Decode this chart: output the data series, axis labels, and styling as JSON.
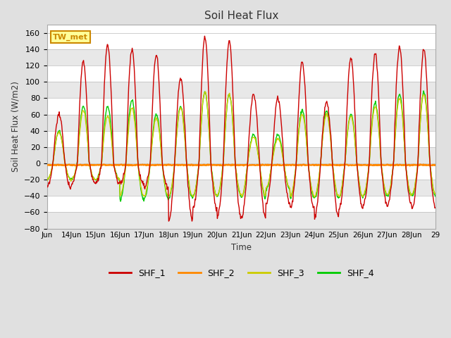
{
  "title": "Soil Heat Flux",
  "ylabel": "Soil Heat Flux (W/m2)",
  "xlabel": "Time",
  "ylim": [
    -80,
    170
  ],
  "yticks": [
    -80,
    -60,
    -40,
    -20,
    0,
    20,
    40,
    60,
    80,
    100,
    120,
    140,
    160
  ],
  "background_color": "#e0e0e0",
  "plot_bg_color": "#ffffff",
  "band_colors": [
    "#e8e8e8",
    "#ffffff"
  ],
  "grid_color": "#cccccc",
  "colors": {
    "SHF_1": "#cc0000",
    "SHF_2": "#ff8800",
    "SHF_3": "#cccc00",
    "SHF_4": "#00cc00"
  },
  "annotation_text": "TW_met",
  "annotation_bg": "#ffff99",
  "annotation_border": "#cc8800",
  "x_tick_labels": [
    "Jun",
    "14Jun",
    "15Jun",
    "16Jun",
    "17Jun",
    "18Jun",
    "19Jun",
    "20Jun",
    "21Jun",
    "22Jun",
    "23Jun",
    "24Jun",
    "25Jun",
    "26Jun",
    "27Jun",
    "28Jun",
    "29"
  ],
  "n_days": 16,
  "pts_per_day": 48
}
